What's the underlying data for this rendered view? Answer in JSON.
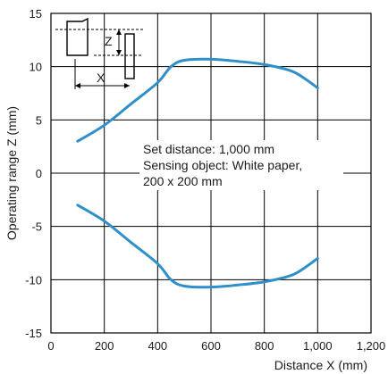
{
  "chart_data": {
    "type": "line",
    "xlabel": "Distance X (mm)",
    "ylabel": "Operating range  Z (mm)",
    "xlim": [
      0,
      1200
    ],
    "ylim": [
      -15,
      15
    ],
    "x_ticks": [
      {
        "value": 0,
        "label": "0"
      },
      {
        "value": 200,
        "label": "200"
      },
      {
        "value": 400,
        "label": "400"
      },
      {
        "value": 600,
        "label": "600"
      },
      {
        "value": 800,
        "label": "800"
      },
      {
        "value": 1000,
        "label": "1,000"
      },
      {
        "value": 1200,
        "label": "1,200"
      }
    ],
    "y_ticks": [
      {
        "value": 15,
        "label": "15"
      },
      {
        "value": 10,
        "label": "10"
      },
      {
        "value": 5,
        "label": "5"
      },
      {
        "value": 0,
        "label": "0"
      },
      {
        "value": -5,
        "label": "-5"
      },
      {
        "value": -10,
        "label": "-10"
      },
      {
        "value": -15,
        "label": "-15"
      }
    ],
    "grid": true,
    "legend": "none",
    "series": [
      {
        "color": "#2f8fcb",
        "points": [
          [
            100,
            3.0
          ],
          [
            200,
            4.5
          ],
          [
            300,
            6.5
          ],
          [
            400,
            8.5
          ],
          [
            450,
            10.0
          ],
          [
            500,
            10.6
          ],
          [
            600,
            10.7
          ],
          [
            700,
            10.5
          ],
          [
            800,
            10.2
          ],
          [
            900,
            9.6
          ],
          [
            950,
            8.9
          ],
          [
            1000,
            8.0
          ]
        ]
      },
      {
        "color": "#2f8fcb",
        "points": [
          [
            100,
            -3.0
          ],
          [
            200,
            -4.5
          ],
          [
            300,
            -6.5
          ],
          [
            400,
            -8.5
          ],
          [
            450,
            -10.0
          ],
          [
            500,
            -10.6
          ],
          [
            600,
            -10.7
          ],
          [
            700,
            -10.5
          ],
          [
            800,
            -10.2
          ],
          [
            900,
            -9.6
          ],
          [
            950,
            -8.9
          ],
          [
            1000,
            -8.0
          ]
        ]
      }
    ],
    "annotations": [
      "Set distance: 1,000 mm",
      "Sensing object: White paper,",
      "200 x 200 mm"
    ],
    "inset_labels": {
      "z": "Z",
      "x": "X"
    }
  }
}
